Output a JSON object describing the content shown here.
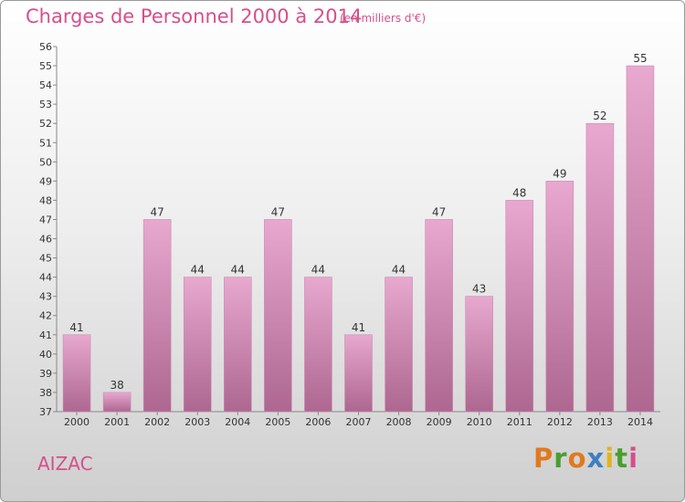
{
  "header": {
    "title": "Charges de Personnel 2000 à 2014",
    "subtitle": "(en milliers d'€)"
  },
  "footer": {
    "commune": "AIZAC",
    "brand": "Proxiti"
  },
  "colors": {
    "title": "#d64f8a",
    "bar_top": "#e8a8cf",
    "bar_bottom": "#ad6790",
    "brand_letters": [
      "#e07a1e",
      "#4a9e2e",
      "#e07a1e",
      "#3e7fc1",
      "#e0b41e",
      "#4a9e2e",
      "#d64f8a"
    ]
  },
  "chart_data": {
    "type": "bar",
    "categories": [
      "2000",
      "2001",
      "2002",
      "2003",
      "2004",
      "2005",
      "2006",
      "2007",
      "2008",
      "2009",
      "2010",
      "2011",
      "2012",
      "2013",
      "2014"
    ],
    "values": [
      41,
      38,
      47,
      44,
      44,
      47,
      44,
      41,
      44,
      47,
      43,
      48,
      49,
      52,
      55
    ],
    "ylim": [
      37,
      56
    ],
    "ytick_step": 1,
    "grid": false,
    "data_labels": true
  }
}
